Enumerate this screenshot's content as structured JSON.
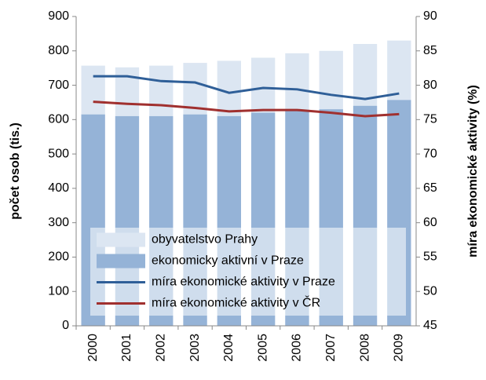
{
  "chart_data": {
    "type": "bar",
    "categories": [
      "2000",
      "2001",
      "2002",
      "2003",
      "2004",
      "2005",
      "2006",
      "2007",
      "2008",
      "2009"
    ],
    "y_label": "počet osob (tis.)",
    "y2_label": "míra ekonomické aktivity (%)",
    "ylim": [
      0,
      900
    ],
    "yticks": [
      0,
      100,
      200,
      300,
      400,
      500,
      600,
      700,
      800,
      900
    ],
    "y2lim": [
      45,
      90
    ],
    "y2ticks": [
      45,
      50,
      55,
      60,
      65,
      70,
      75,
      80,
      85,
      90
    ],
    "grid": false,
    "legend": "bottom",
    "series": [
      {
        "name": "obyvatelstvo Prahy",
        "type": "bar",
        "color": "#dce6f2",
        "values": [
          757,
          752,
          757,
          765,
          771,
          780,
          793,
          800,
          820,
          830
        ]
      },
      {
        "name": "ekonomicky aktivní v Praze",
        "type": "bar",
        "color": "#95b3d7",
        "values": [
          615,
          610,
          610,
          615,
          610,
          620,
          625,
          630,
          640,
          657
        ]
      },
      {
        "name": "míra ekonomické aktivity v Praze",
        "type": "line",
        "axis": "y2",
        "color": "#2f5f98",
        "values": [
          81.3,
          81.3,
          80.6,
          80.4,
          78.9,
          79.6,
          79.4,
          78.6,
          78.0,
          78.8
        ]
      },
      {
        "name": "míra ekonomické aktivity v ČR",
        "type": "line",
        "axis": "y2",
        "color": "#a0302f",
        "values": [
          77.6,
          77.3,
          77.1,
          76.7,
          76.2,
          76.4,
          76.4,
          76.0,
          75.5,
          75.8
        ]
      }
    ]
  }
}
